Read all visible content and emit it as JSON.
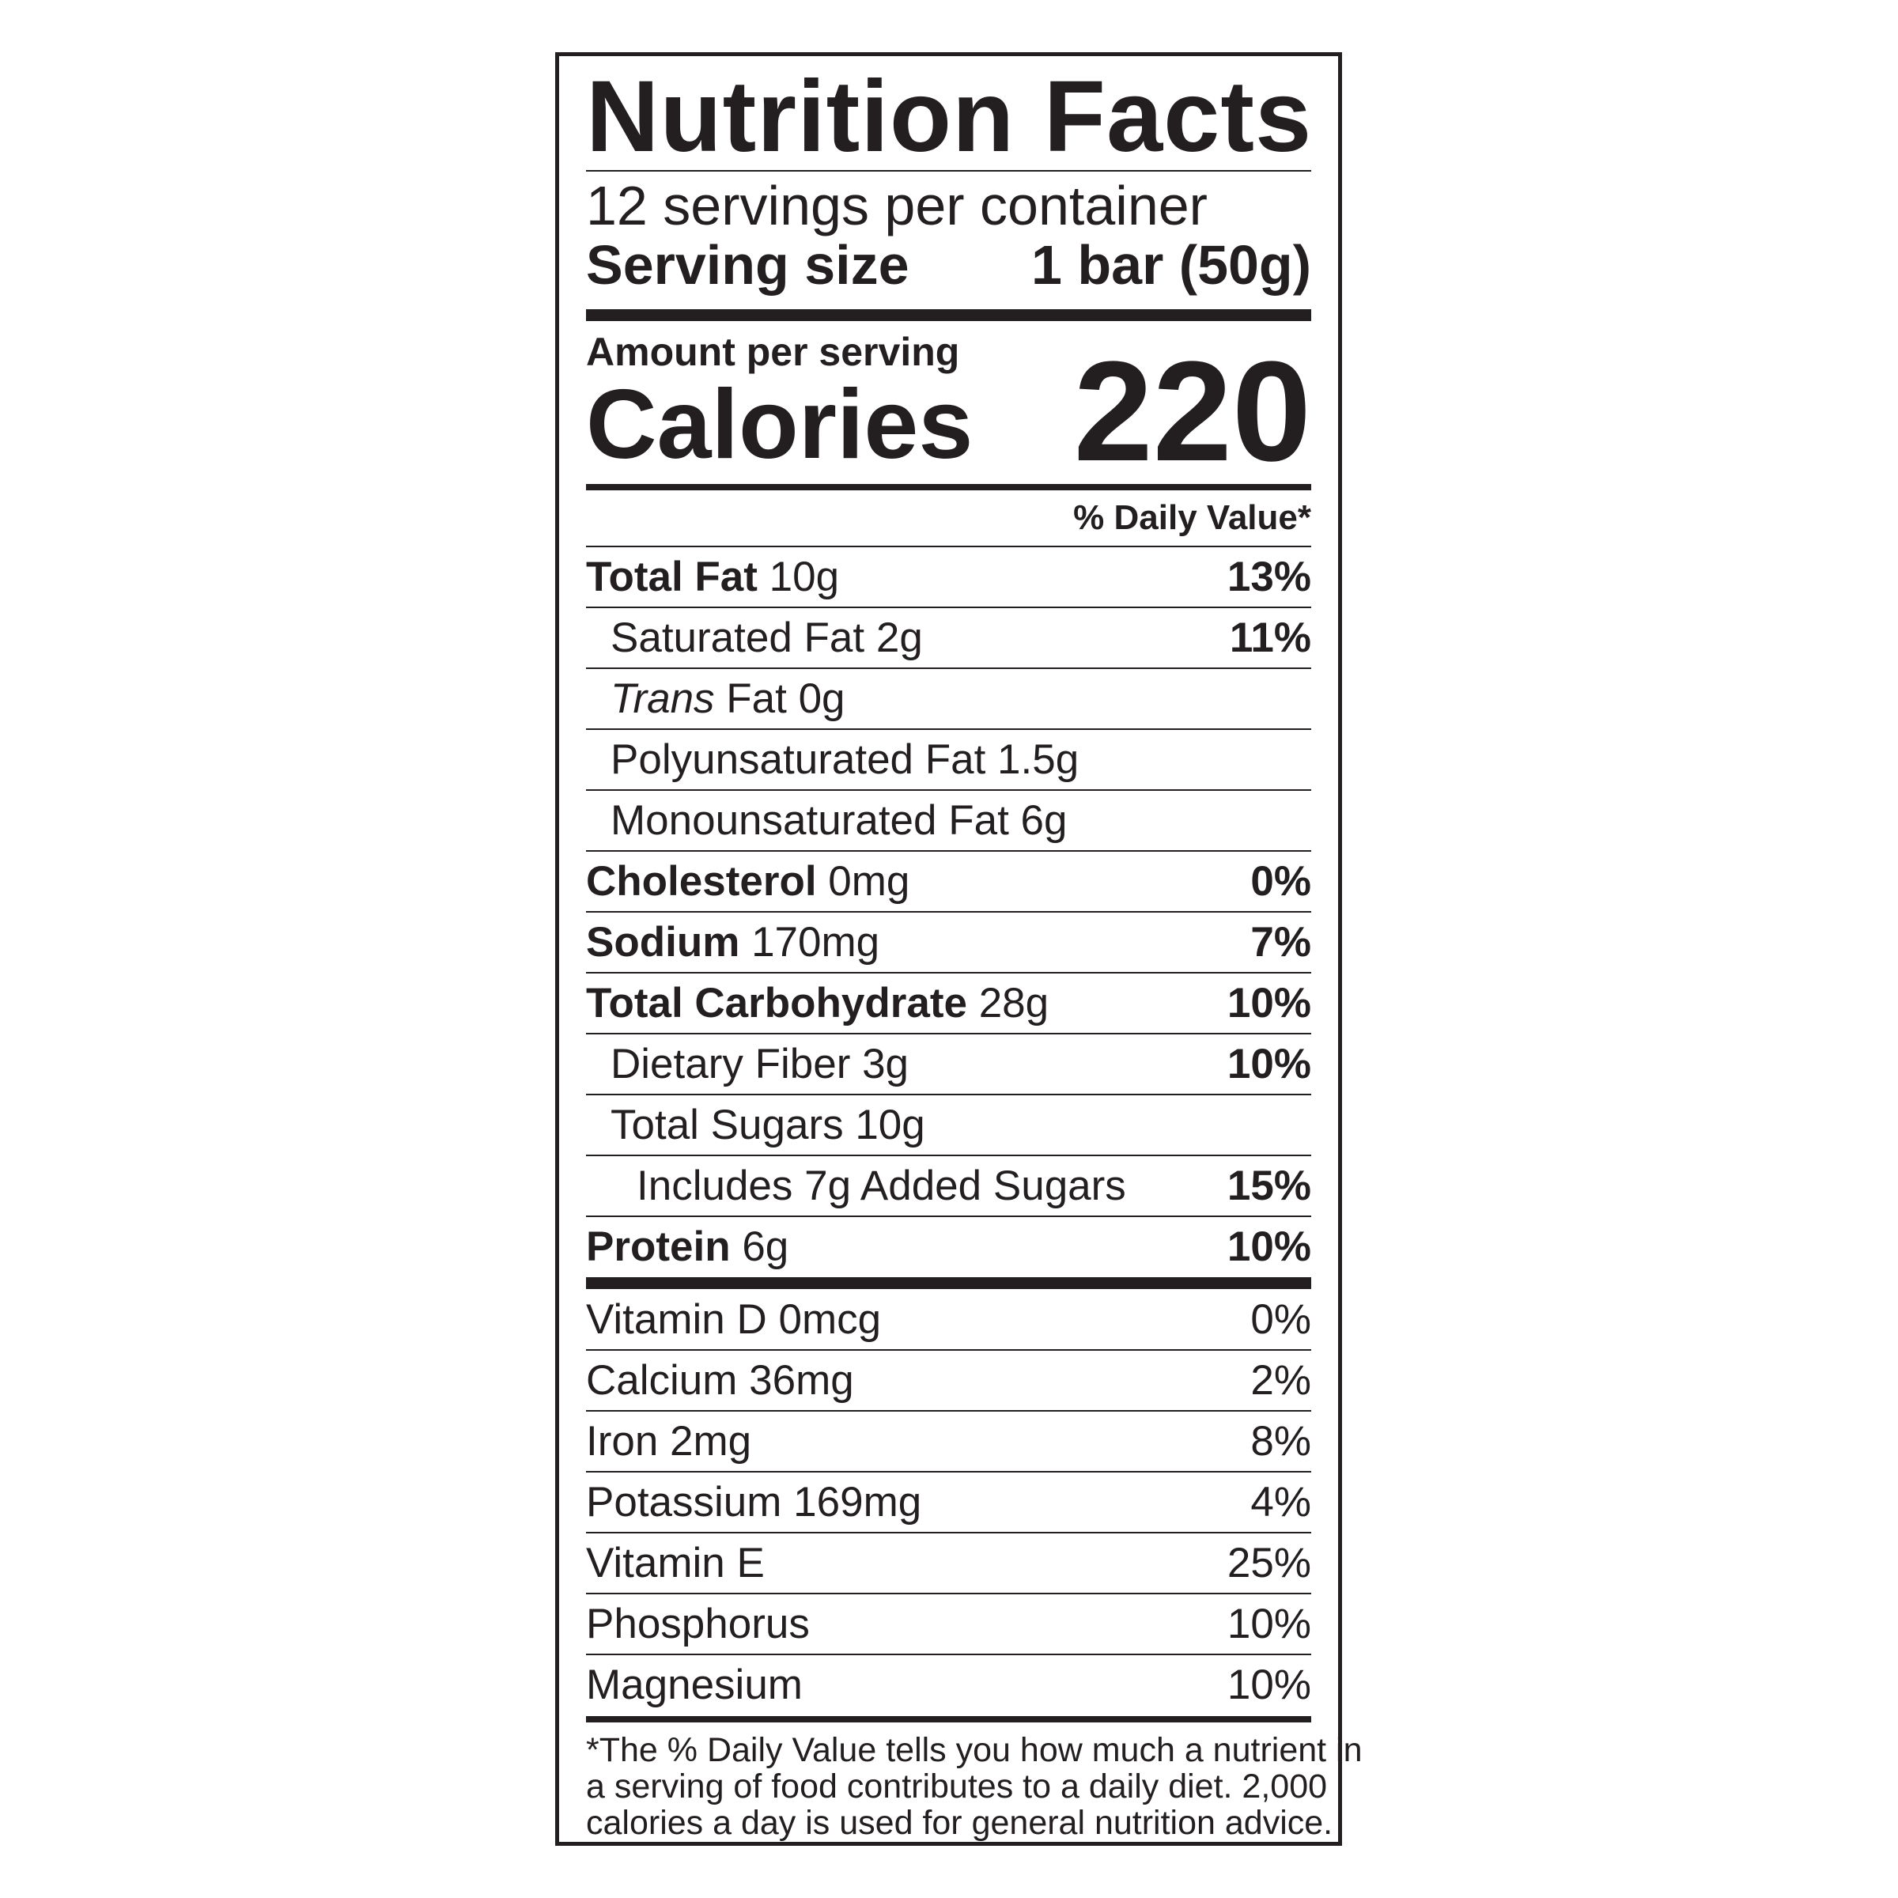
{
  "title": "Nutrition Facts",
  "servings_per_container": "12 servings per container",
  "serving_size": {
    "label": "Serving size",
    "value": "1 bar (50g)"
  },
  "amount_per_serving": "Amount per serving",
  "calories": {
    "label": "Calories",
    "value": 220
  },
  "daily_value_header": "% Daily Value*",
  "nutrients": [
    {
      "name": "Total Fat",
      "amount": "10g",
      "dv": "13%"
    },
    {
      "name": "Saturated Fat 2g",
      "dv": "11%"
    },
    {
      "italic": "Trans",
      "name": "Fat 0g"
    },
    {
      "name": "Polyunsaturated Fat 1.5g"
    },
    {
      "name": "Monounsaturated Fat 6g"
    },
    {
      "name": "Cholesterol",
      "amount": "0mg",
      "dv": "0%"
    },
    {
      "name": "Sodium",
      "amount": "170mg",
      "dv": "7%"
    },
    {
      "name": "Total Carbohydrate",
      "amount": "28g",
      "dv": "10%"
    },
    {
      "name": "Dietary Fiber 3g",
      "dv": "10%"
    },
    {
      "name": "Total Sugars 10g"
    },
    {
      "name": "Includes 7g Added Sugars",
      "dv": "15%"
    },
    {
      "name": "Protein",
      "amount": "6g",
      "dv": "10%"
    }
  ],
  "vitamins": [
    {
      "name": "Vitamin D 0mcg",
      "dv": "0%"
    },
    {
      "name": "Calcium 36mg",
      "dv": "2%"
    },
    {
      "name": "Iron 2mg",
      "dv": "8%"
    },
    {
      "name": "Potassium 169mg",
      "dv": "4%"
    },
    {
      "name": "Vitamin E",
      "dv": "25%"
    },
    {
      "name": "Phosphorus",
      "dv": "10%"
    },
    {
      "name": "Magnesium",
      "dv": "10%"
    }
  ],
  "footnote": [
    "*The % Daily Value tells you how much a nutrient in",
    "a serving of food contributes to a daily diet. 2,000",
    "calories a day is used for general nutrition advice."
  ]
}
